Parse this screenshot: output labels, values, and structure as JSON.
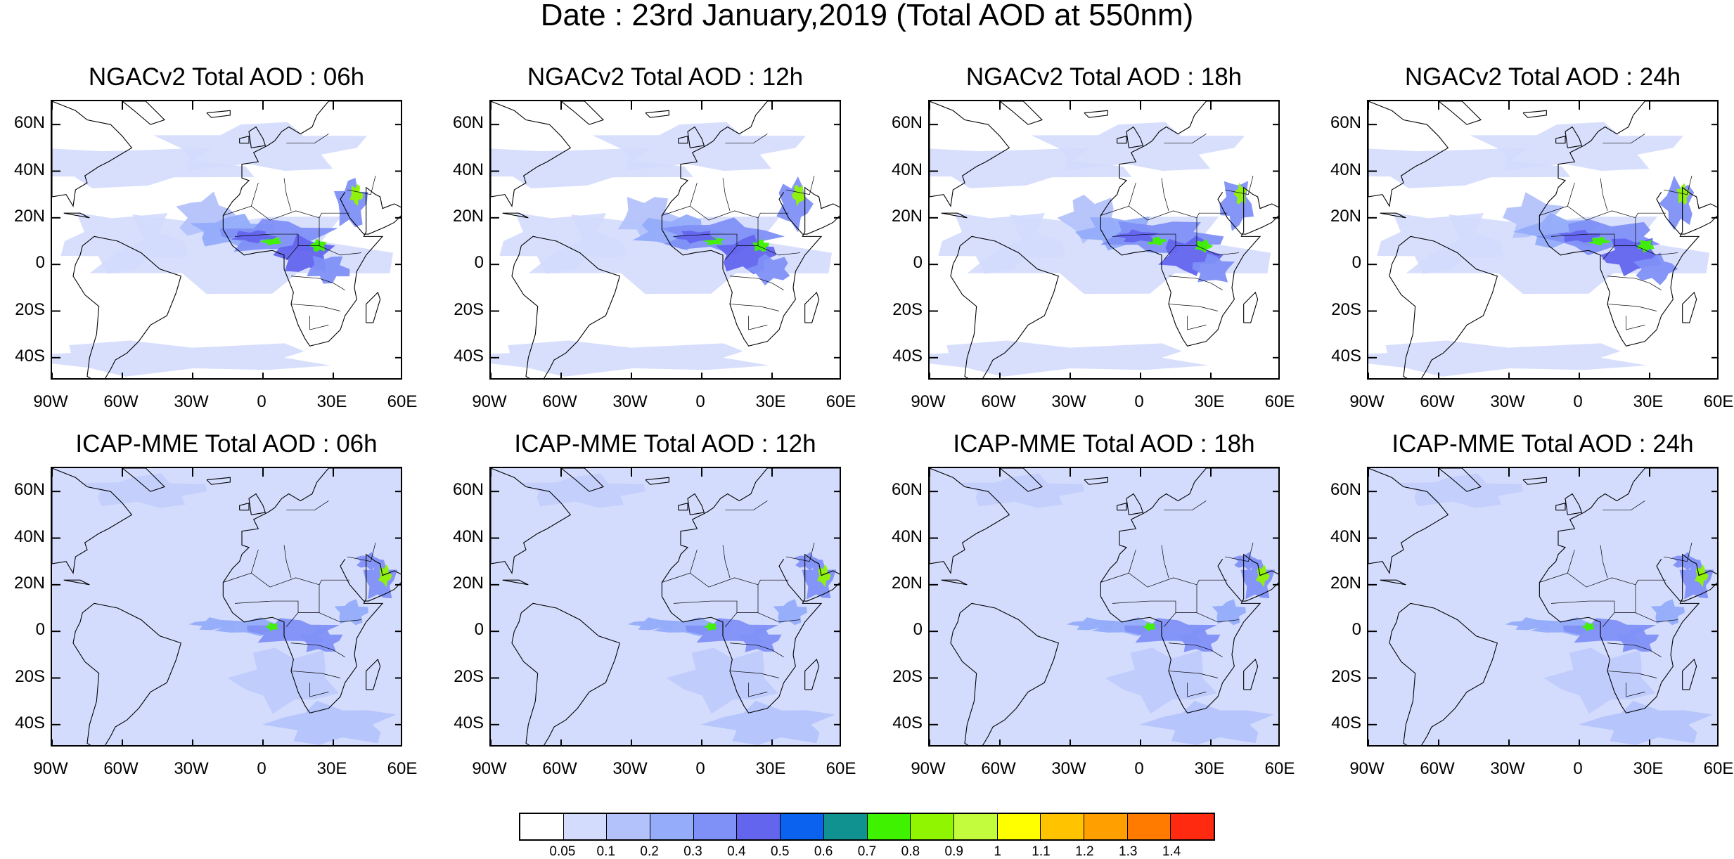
{
  "title": "Date : 23rd January,2019 (Total AOD at 550nm)",
  "lat_labels": [
    "60N",
    "40N",
    "20N",
    "0",
    "20S",
    "40S"
  ],
  "lon_labels": [
    "90W",
    "60W",
    "30W",
    "0",
    "30E",
    "60E"
  ],
  "panels": [
    {
      "title": "NGACv2 Total AOD : 06h",
      "model": "NGACv2",
      "hour": "06h"
    },
    {
      "title": "NGACv2 Total AOD : 12h",
      "model": "NGACv2",
      "hour": "12h"
    },
    {
      "title": "NGACv2 Total AOD : 18h",
      "model": "NGACv2",
      "hour": "18h"
    },
    {
      "title": "NGACv2 Total AOD : 24h",
      "model": "NGACv2",
      "hour": "24h"
    },
    {
      "title": "ICAP-MME Total AOD : 06h",
      "model": "ICAP-MME",
      "hour": "06h"
    },
    {
      "title": "ICAP-MME Total AOD : 12h",
      "model": "ICAP-MME",
      "hour": "12h"
    },
    {
      "title": "ICAP-MME Total AOD : 18h",
      "model": "ICAP-MME",
      "hour": "18h"
    },
    {
      "title": "ICAP-MME Total AOD : 24h",
      "model": "ICAP-MME",
      "hour": "24h"
    }
  ],
  "colorbar": {
    "labels": [
      "0.05",
      "0.1",
      "0.2",
      "0.3",
      "0.4",
      "0.5",
      "0.6",
      "0.7",
      "0.8",
      "0.9",
      "1",
      "1.1",
      "1.2",
      "1.3",
      "1.4"
    ],
    "colors": [
      "#ffffff",
      "#d4dcfd",
      "#b3c2fb",
      "#94acfa",
      "#7f90f7",
      "#6365ee",
      "#0b62ef",
      "#109291",
      "#3ff300",
      "#8ff500",
      "#c2fc3c",
      "#ffff00",
      "#ffc300",
      "#ff9f00",
      "#ff7b00",
      "#ff2a10"
    ]
  }
}
